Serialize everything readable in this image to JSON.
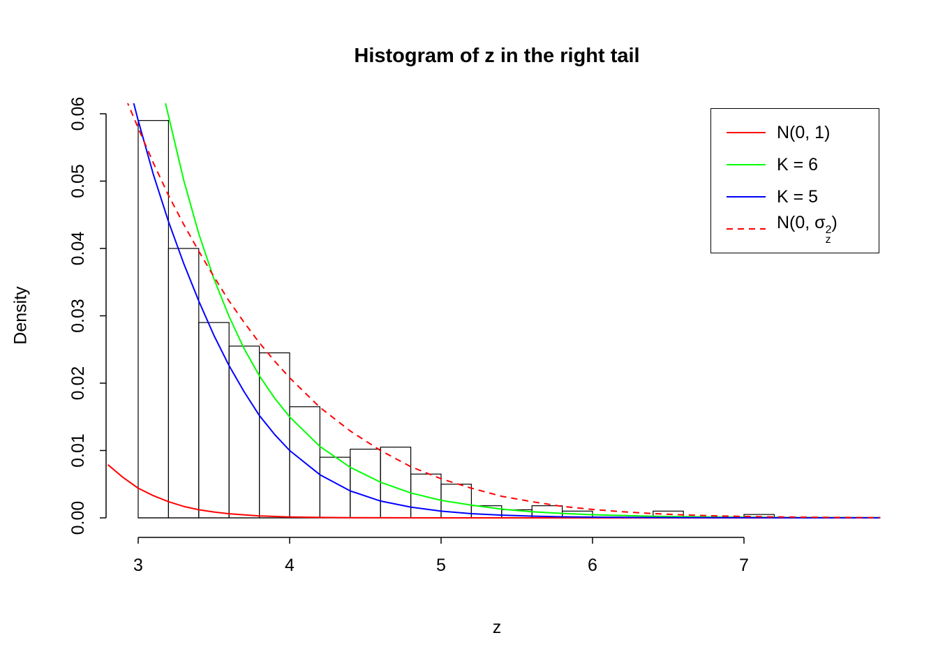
{
  "chart_data": {
    "type": "bar",
    "subtype": "histogram-with-density-curves",
    "title": "Histogram of z in the right tail",
    "xlabel": "z",
    "ylabel": "Density",
    "xlim": [
      2.8,
      7.92
    ],
    "ylim": [
      0,
      0.0615
    ],
    "grid": false,
    "x_ticks": {
      "values": [
        3,
        4,
        5,
        6,
        7
      ],
      "labels": [
        "3",
        "4",
        "5",
        "6",
        "7"
      ]
    },
    "y_ticks": {
      "values": [
        0,
        0.01,
        0.02,
        0.03,
        0.04,
        0.05,
        0.06
      ],
      "labels": [
        "0.00",
        "0.01",
        "0.02",
        "0.03",
        "0.04",
        "0.05",
        "0.06"
      ]
    },
    "histogram": {
      "bin_start": 3.0,
      "bin_width": 0.2,
      "bar_fill": "none",
      "bar_stroke": "#000000",
      "densities": [
        0.059,
        0.04,
        0.029,
        0.0255,
        0.0245,
        0.0165,
        0.009,
        0.0102,
        0.0105,
        0.0065,
        0.005,
        0.0018,
        0.0012,
        0.0018,
        0.001,
        0,
        0,
        0.001,
        0,
        0,
        0.0005
      ]
    },
    "curves": [
      {
        "id": "n01",
        "name": "N(0, 1)",
        "color": "#ff0000",
        "dasharray": "",
        "points": [
          [
            2.8,
            0.0079
          ],
          [
            2.9,
            0.006
          ],
          [
            3.0,
            0.0044
          ],
          [
            3.1,
            0.0033
          ],
          [
            3.2,
            0.0024
          ],
          [
            3.3,
            0.0017
          ],
          [
            3.4,
            0.0012
          ],
          [
            3.5,
            0.00087
          ],
          [
            3.6,
            0.00061
          ],
          [
            3.8,
            0.00029
          ],
          [
            4.0,
            0.00013
          ],
          [
            4.2,
            6e-05
          ],
          [
            4.4,
            2.5e-05
          ],
          [
            4.7,
            7e-06
          ],
          [
            5.0,
            1.5e-06
          ],
          [
            5.5,
            2e-07
          ],
          [
            6.5,
            0
          ],
          [
            7.9,
            0
          ]
        ]
      },
      {
        "id": "k6",
        "name": "K = 6",
        "color": "#00ff00",
        "dasharray": "",
        "points": [
          [
            3.1,
            0.0706
          ],
          [
            3.17,
            0.0625
          ],
          [
            3.2,
            0.0597
          ],
          [
            3.3,
            0.0502
          ],
          [
            3.4,
            0.0422
          ],
          [
            3.5,
            0.0355
          ],
          [
            3.6,
            0.0299
          ],
          [
            3.7,
            0.0251
          ],
          [
            3.8,
            0.0211
          ],
          [
            3.9,
            0.0178
          ],
          [
            4.0,
            0.015
          ],
          [
            4.2,
            0.0106
          ],
          [
            4.4,
            0.0075
          ],
          [
            4.6,
            0.0053
          ],
          [
            4.8,
            0.0037
          ],
          [
            5.0,
            0.0026
          ],
          [
            5.2,
            0.0019
          ],
          [
            5.4,
            0.0013
          ],
          [
            5.6,
            0.0009
          ],
          [
            5.8,
            0.00066
          ],
          [
            6.0,
            0.00047
          ],
          [
            6.4,
            0.00023
          ],
          [
            6.8,
            0.00012
          ],
          [
            7.2,
            6e-05
          ],
          [
            7.9,
            2e-05
          ]
        ]
      },
      {
        "id": "k5",
        "name": "K = 5",
        "color": "#0000ff",
        "dasharray": "",
        "points": [
          [
            2.96,
            0.0625
          ],
          [
            3.0,
            0.059
          ],
          [
            3.1,
            0.051
          ],
          [
            3.2,
            0.044
          ],
          [
            3.3,
            0.0378
          ],
          [
            3.4,
            0.0322
          ],
          [
            3.5,
            0.0271
          ],
          [
            3.6,
            0.0226
          ],
          [
            3.7,
            0.0187
          ],
          [
            3.8,
            0.0152
          ],
          [
            3.9,
            0.0124
          ],
          [
            4.0,
            0.01
          ],
          [
            4.2,
            0.0064
          ],
          [
            4.4,
            0.004
          ],
          [
            4.6,
            0.0025
          ],
          [
            4.8,
            0.0016
          ],
          [
            5.0,
            0.001
          ],
          [
            5.2,
            0.00062
          ],
          [
            5.4,
            0.0004
          ],
          [
            5.6,
            0.00026
          ],
          [
            5.8,
            0.00016
          ],
          [
            6.0,
            0.0001
          ],
          [
            6.5,
            4e-05
          ],
          [
            7.0,
            2e-05
          ],
          [
            7.9,
            1e-05
          ]
        ]
      },
      {
        "id": "n0sigma",
        "name": "N(0, σz²)",
        "color": "#ff0000",
        "dasharray": "9 7",
        "points": [
          [
            2.84,
            0.0667
          ],
          [
            2.9,
            0.0632
          ],
          [
            3.0,
            0.0579
          ],
          [
            3.1,
            0.0527
          ],
          [
            3.2,
            0.0479
          ],
          [
            3.3,
            0.0436
          ],
          [
            3.4,
            0.0396
          ],
          [
            3.5,
            0.0358
          ],
          [
            3.6,
            0.0322
          ],
          [
            3.7,
            0.029
          ],
          [
            3.8,
            0.026
          ],
          [
            3.9,
            0.0233
          ],
          [
            4.0,
            0.0208
          ],
          [
            4.2,
            0.0164
          ],
          [
            4.4,
            0.0129
          ],
          [
            4.6,
            0.01
          ],
          [
            4.8,
            0.0076
          ],
          [
            5.0,
            0.0058
          ],
          [
            5.2,
            0.0044
          ],
          [
            5.4,
            0.0032
          ],
          [
            5.6,
            0.0024
          ],
          [
            5.8,
            0.0017
          ],
          [
            6.0,
            0.00125
          ],
          [
            6.2,
            0.0009
          ],
          [
            6.4,
            0.00063
          ],
          [
            6.6,
            0.00044
          ],
          [
            6.8,
            0.0003
          ],
          [
            7.0,
            0.00021
          ],
          [
            7.2,
            0.00014
          ],
          [
            7.5,
            8e-05
          ],
          [
            7.9,
            3e-05
          ]
        ]
      }
    ],
    "legend": {
      "position": "top-right",
      "items": [
        {
          "id": "n01",
          "label": "N(0, 1)",
          "color": "#ff0000",
          "dasharray": ""
        },
        {
          "id": "k6",
          "label": "K = 6",
          "color": "#00ff00",
          "dasharray": ""
        },
        {
          "id": "k5",
          "label": "K = 5",
          "color": "#0000ff",
          "dasharray": ""
        },
        {
          "id": "n0sigma",
          "label": "N(0, σz²)",
          "label_parts": {
            "pre": "N(0, σ",
            "sup": "2",
            "sub": "z",
            "post": ")"
          },
          "color": "#ff0000",
          "dasharray": "9 7"
        }
      ]
    }
  }
}
